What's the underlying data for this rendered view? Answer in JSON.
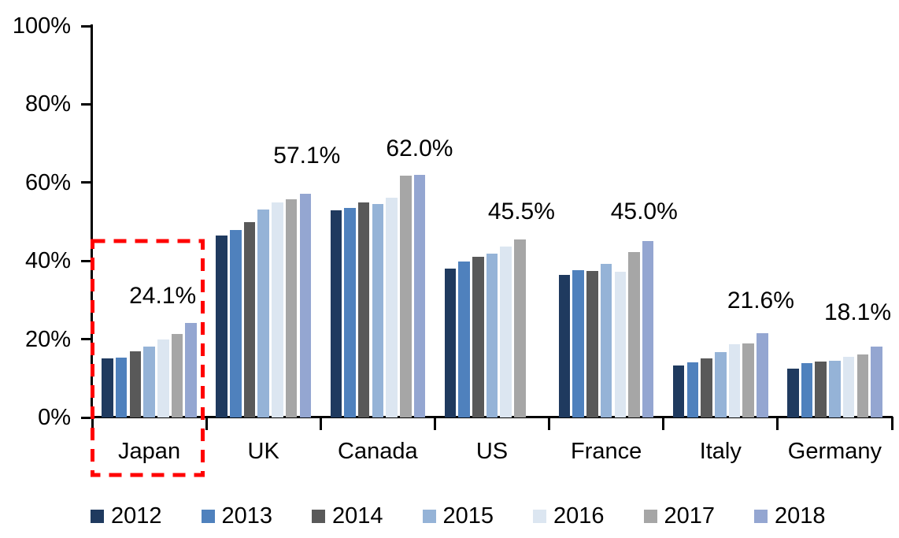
{
  "chart_data": {
    "type": "bar",
    "title": "",
    "xlabel": "",
    "ylabel": "",
    "categories": [
      "Japan",
      "UK",
      "Canada",
      "US",
      "France",
      "Italy",
      "Germany"
    ],
    "series": [
      {
        "name": "2012",
        "color": "#1F3A5F",
        "values": [
          15.1,
          46.5,
          53.0,
          38.1,
          36.5,
          13.2,
          12.5
        ]
      },
      {
        "name": "2013",
        "color": "#4F81BD",
        "values": [
          15.3,
          47.8,
          53.5,
          39.8,
          37.7,
          14.0,
          13.8
        ]
      },
      {
        "name": "2014",
        "color": "#595959",
        "values": [
          16.9,
          50.0,
          54.9,
          41.1,
          37.5,
          15.1,
          14.3
        ]
      },
      {
        "name": "2015",
        "color": "#95B3D7",
        "values": [
          18.2,
          53.2,
          54.6,
          41.9,
          39.3,
          16.6,
          14.5
        ]
      },
      {
        "name": "2016",
        "color": "#DCE6F1",
        "values": [
          20.0,
          55.0,
          56.1,
          43.6,
          37.3,
          18.7,
          15.4
        ]
      },
      {
        "name": "2017",
        "color": "#A6A6A6",
        "values": [
          21.3,
          55.8,
          61.7,
          45.5,
          42.3,
          18.9,
          16.0
        ]
      },
      {
        "name": "2018",
        "color": "#94A6D1",
        "values": [
          24.1,
          57.1,
          62.0,
          null,
          45.0,
          21.6,
          18.1
        ]
      }
    ],
    "data_labels": [
      "24.1%",
      "57.1%",
      "62.0%",
      "45.5%",
      "45.0%",
      "21.6%",
      "18.1%"
    ],
    "y_ticks": [
      "0%",
      "20%",
      "40%",
      "60%",
      "80%",
      "100%"
    ],
    "y_tick_values": [
      0,
      20,
      40,
      60,
      80,
      100
    ],
    "ylim": [
      0,
      100
    ],
    "grid": false,
    "legend_position": "bottom",
    "axis_color": "#000000",
    "highlight": {
      "category": "Japan",
      "color": "#FF0000",
      "style": "dashed-box"
    }
  }
}
